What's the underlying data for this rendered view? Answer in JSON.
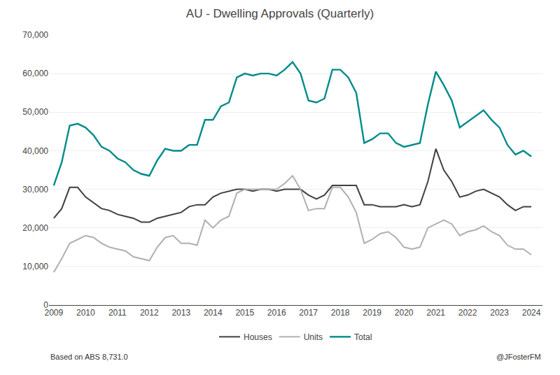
{
  "chart_data": {
    "type": "line",
    "title": "AU - Dwelling Approvals (Quarterly)",
    "annotations": [
      "Based on ABS 8,731.0",
      "@JFosterFM"
    ],
    "x": [
      2009.0,
      2009.25,
      2009.5,
      2009.75,
      2010.0,
      2010.25,
      2010.5,
      2010.75,
      2011.0,
      2011.25,
      2011.5,
      2011.75,
      2012.0,
      2012.25,
      2012.5,
      2012.75,
      2013.0,
      2013.25,
      2013.5,
      2013.75,
      2014.0,
      2014.25,
      2014.5,
      2014.75,
      2015.0,
      2015.25,
      2015.5,
      2015.75,
      2016.0,
      2016.25,
      2016.5,
      2016.75,
      2017.0,
      2017.25,
      2017.5,
      2017.75,
      2018.0,
      2018.25,
      2018.5,
      2018.75,
      2019.0,
      2019.25,
      2019.5,
      2019.75,
      2020.0,
      2020.25,
      2020.5,
      2020.75,
      2021.0,
      2021.25,
      2021.5,
      2021.75,
      2022.0,
      2022.25,
      2022.5,
      2022.75,
      2023.0,
      2023.25,
      2023.5,
      2023.75,
      2024.0
    ],
    "series": [
      {
        "name": "Houses",
        "color": "#404040",
        "values": [
          22500,
          25000,
          30500,
          30500,
          28000,
          26500,
          25000,
          24500,
          23500,
          23000,
          22500,
          21500,
          21500,
          22500,
          23000,
          23500,
          24000,
          25500,
          26000,
          26000,
          28000,
          29000,
          29500,
          30000,
          30000,
          29500,
          30000,
          30000,
          29500,
          30000,
          30000,
          30000,
          28500,
          27500,
          28500,
          31000,
          31000,
          31000,
          31000,
          26000,
          26000,
          25500,
          25500,
          25500,
          26000,
          25500,
          26000,
          32000,
          40500,
          35000,
          32000,
          28000,
          28500,
          29500,
          30000,
          29000,
          28000,
          26000,
          24500,
          25500,
          25500
        ]
      },
      {
        "name": "Units",
        "color": "#b0b0b0",
        "values": [
          8500,
          12000,
          16000,
          17000,
          18000,
          17500,
          16000,
          15000,
          14500,
          14000,
          12500,
          12000,
          11500,
          15000,
          17500,
          18000,
          16000,
          16000,
          15500,
          22000,
          20000,
          22000,
          23000,
          29000,
          30000,
          30000,
          30000,
          30000,
          30000,
          31500,
          33500,
          30000,
          24500,
          25000,
          25000,
          30500,
          30500,
          28000,
          24000,
          16000,
          17000,
          18500,
          19000,
          17500,
          15000,
          14500,
          15000,
          20000,
          21000,
          22000,
          21000,
          18000,
          19000,
          19500,
          20500,
          19000,
          18000,
          15500,
          14500,
          14500,
          13000
        ]
      },
      {
        "name": "Total",
        "color": "#008B8B",
        "values": [
          31000,
          37000,
          46500,
          47000,
          46000,
          44000,
          41000,
          40000,
          38000,
          37000,
          35000,
          34000,
          33500,
          37500,
          40500,
          40000,
          40000,
          41500,
          41500,
          48000,
          48000,
          51500,
          52500,
          59000,
          60000,
          59500,
          60000,
          60000,
          59500,
          61000,
          63000,
          60000,
          53000,
          52500,
          53500,
          61000,
          61000,
          59000,
          55000,
          42000,
          43000,
          44500,
          44500,
          42000,
          41000,
          41500,
          42000,
          52000,
          60500,
          57000,
          53000,
          46000,
          47500,
          49000,
          50500,
          48000,
          46000,
          41500,
          39000,
          40000,
          38500
        ]
      }
    ],
    "xlim": [
      2008.85,
      2024.35
    ],
    "xticks": [
      2009,
      2010,
      2011,
      2012,
      2013,
      2014,
      2015,
      2016,
      2017,
      2018,
      2019,
      2020,
      2021,
      2022,
      2023,
      2024
    ],
    "ylim": [
      0,
      70000
    ],
    "yticks": [
      0,
      {
        "value": 10000,
        "label": "10,000"
      },
      {
        "value": 20000,
        "label": "20,000"
      },
      {
        "value": 30000,
        "label": "30,000"
      },
      {
        "value": 40000,
        "label": "40,000"
      },
      {
        "value": 50000,
        "label": "50,000"
      },
      {
        "value": 60000,
        "label": "60,000"
      },
      {
        "value": 70000,
        "label": "70,000"
      }
    ],
    "grid": true,
    "legend": "bottom"
  }
}
